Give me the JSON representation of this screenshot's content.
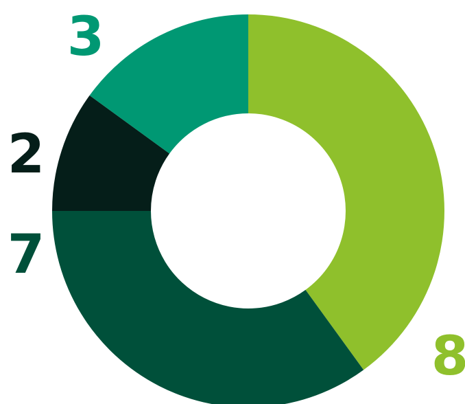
{
  "chart_data": {
    "type": "pie",
    "variant": "donut",
    "slices": [
      {
        "value": 8,
        "label": "8",
        "color": "#8fc02c"
      },
      {
        "value": 7,
        "label": "7",
        "color": "#00503a"
      },
      {
        "value": 2,
        "label": "2",
        "color": "#051e19"
      },
      {
        "value": 3,
        "label": "3",
        "color": "#009873"
      }
    ],
    "start_angle_deg": 0,
    "direction": "clockwise",
    "title": "",
    "legend": "none"
  }
}
